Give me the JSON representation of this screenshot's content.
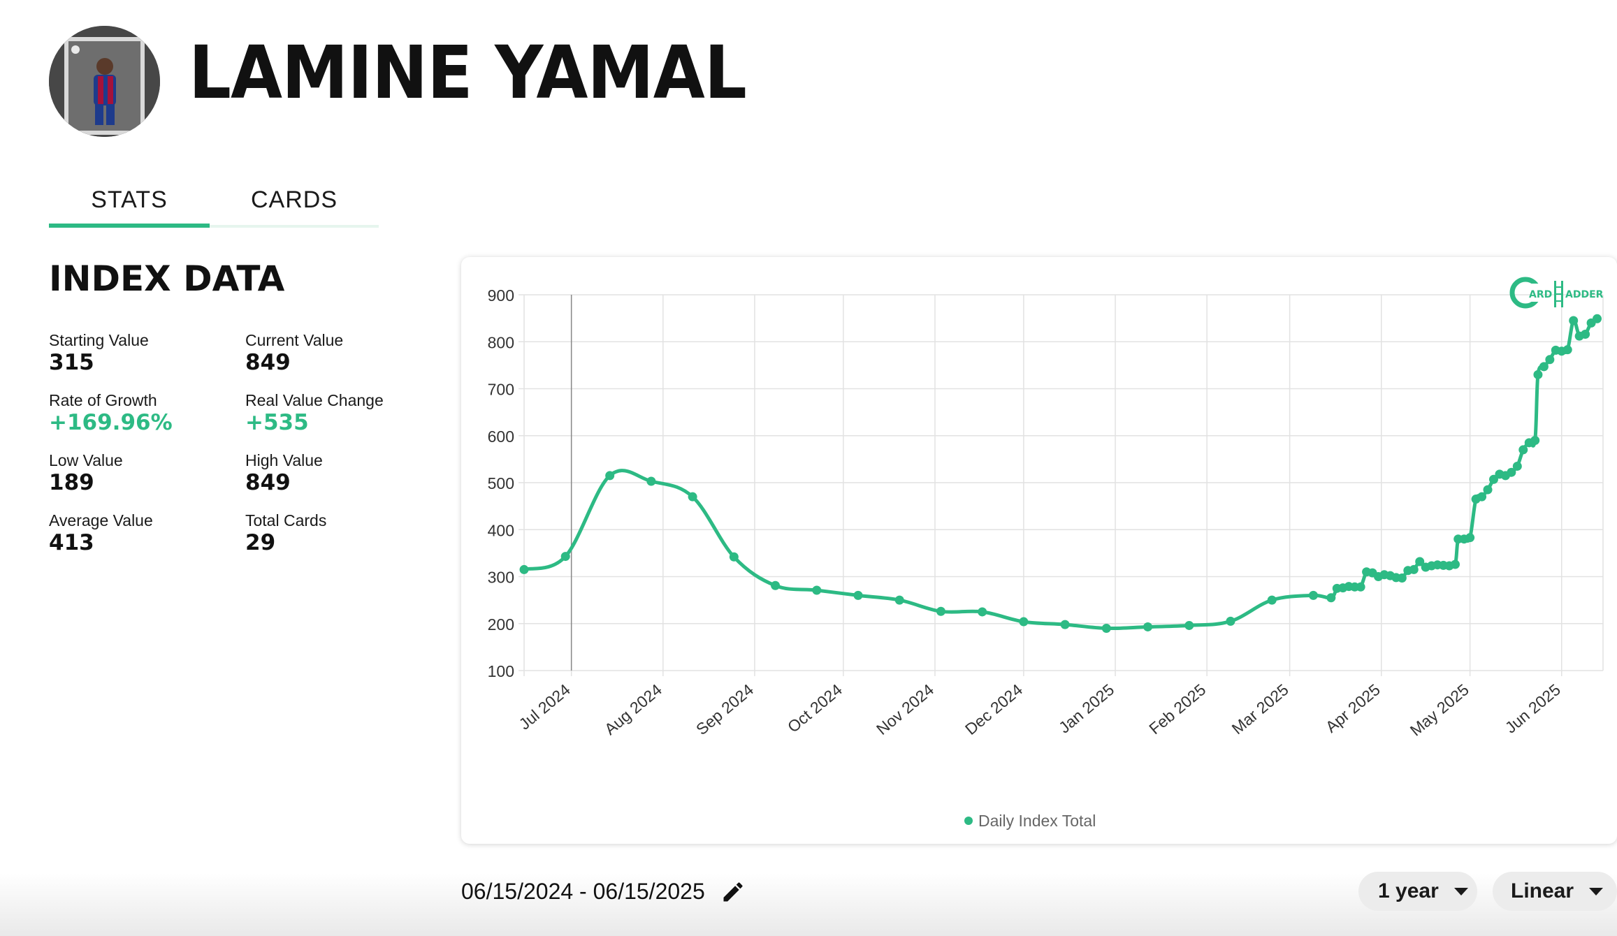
{
  "player": {
    "name": "LAMINE YAMAL"
  },
  "tabs": [
    {
      "label": "STATS",
      "active": true
    },
    {
      "label": "CARDS",
      "active": false
    }
  ],
  "index_data": {
    "title": "INDEX DATA",
    "stats": [
      {
        "label": "Starting Value",
        "value": "315",
        "highlight": false
      },
      {
        "label": "Current Value",
        "value": "849",
        "highlight": false
      },
      {
        "label": "Rate of Growth",
        "value": "+169.96%",
        "highlight": true
      },
      {
        "label": "Real Value Change",
        "value": "+535",
        "highlight": true
      },
      {
        "label": "Low Value",
        "value": "189",
        "highlight": false
      },
      {
        "label": "High Value",
        "value": "849",
        "highlight": false
      },
      {
        "label": "Average Value",
        "value": "413",
        "highlight": false
      },
      {
        "label": "Total Cards",
        "value": "29",
        "highlight": false
      }
    ]
  },
  "chart_data": {
    "type": "line",
    "series_name": "Daily Index Total",
    "color": "#2dba84",
    "ylim": [
      100,
      900
    ],
    "yticks": [
      900,
      800,
      700,
      600,
      500,
      400,
      300,
      200,
      100
    ],
    "xlim": [
      "2024-06-15",
      "2025-06-15"
    ],
    "xticks": [
      {
        "date": "2024-07-01",
        "label": "Jul 2024"
      },
      {
        "date": "2024-08-01",
        "label": "Aug 2024"
      },
      {
        "date": "2024-09-01",
        "label": "Sep 2024"
      },
      {
        "date": "2024-10-01",
        "label": "Oct 2024"
      },
      {
        "date": "2024-11-01",
        "label": "Nov 2024"
      },
      {
        "date": "2024-12-01",
        "label": "Dec 2024"
      },
      {
        "date": "2025-01-01",
        "label": "Jan 2025"
      },
      {
        "date": "2025-02-01",
        "label": "Feb 2025"
      },
      {
        "date": "2025-03-01",
        "label": "Mar 2025"
      },
      {
        "date": "2025-04-01",
        "label": "Apr 2025"
      },
      {
        "date": "2025-05-01",
        "label": "May 2025"
      },
      {
        "date": "2025-06-01",
        "label": "Jun 2025"
      }
    ],
    "legend": "bottom",
    "grid": true,
    "points": [
      [
        "2024-06-15",
        315
      ],
      [
        "2024-06-29",
        343
      ],
      [
        "2024-07-14",
        515
      ],
      [
        "2024-07-28",
        503
      ],
      [
        "2024-08-11",
        470
      ],
      [
        "2024-08-25",
        342
      ],
      [
        "2024-09-08",
        281
      ],
      [
        "2024-09-22",
        271
      ],
      [
        "2024-10-06",
        260
      ],
      [
        "2024-10-20",
        250
      ],
      [
        "2024-11-03",
        226
      ],
      [
        "2024-11-17",
        225
      ],
      [
        "2024-12-01",
        204
      ],
      [
        "2024-12-15",
        198
      ],
      [
        "2024-12-29",
        190
      ],
      [
        "2025-01-12",
        193
      ],
      [
        "2025-01-26",
        196
      ],
      [
        "2025-02-09",
        205
      ],
      [
        "2025-02-23",
        250
      ],
      [
        "2025-03-09",
        260
      ],
      [
        "2025-03-15",
        255
      ],
      [
        "2025-03-17",
        275
      ],
      [
        "2025-03-19",
        276
      ],
      [
        "2025-03-21",
        279
      ],
      [
        "2025-03-23",
        278
      ],
      [
        "2025-03-25",
        278
      ],
      [
        "2025-03-27",
        310
      ],
      [
        "2025-03-29",
        308
      ],
      [
        "2025-03-31",
        300
      ],
      [
        "2025-04-02",
        304
      ],
      [
        "2025-04-04",
        302
      ],
      [
        "2025-04-06",
        298
      ],
      [
        "2025-04-08",
        297
      ],
      [
        "2025-04-10",
        313
      ],
      [
        "2025-04-12",
        315
      ],
      [
        "2025-04-14",
        332
      ],
      [
        "2025-04-16",
        320
      ],
      [
        "2025-04-18",
        323
      ],
      [
        "2025-04-20",
        325
      ],
      [
        "2025-04-22",
        324
      ],
      [
        "2025-04-24",
        323
      ],
      [
        "2025-04-26",
        326
      ],
      [
        "2025-04-27",
        380
      ],
      [
        "2025-04-29",
        380
      ],
      [
        "2025-05-01",
        383
      ],
      [
        "2025-05-03",
        465
      ],
      [
        "2025-05-05",
        470
      ],
      [
        "2025-05-07",
        485
      ],
      [
        "2025-05-09",
        507
      ],
      [
        "2025-05-11",
        518
      ],
      [
        "2025-05-13",
        515
      ],
      [
        "2025-05-15",
        522
      ],
      [
        "2025-05-17",
        535
      ],
      [
        "2025-05-19",
        570
      ],
      [
        "2025-05-21",
        585
      ],
      [
        "2025-05-23",
        590
      ],
      [
        "2025-05-24",
        730
      ],
      [
        "2025-05-26",
        747
      ],
      [
        "2025-05-28",
        762
      ],
      [
        "2025-05-30",
        782
      ],
      [
        "2025-06-01",
        780
      ],
      [
        "2025-06-03",
        783
      ],
      [
        "2025-06-05",
        845
      ],
      [
        "2025-06-07",
        812
      ],
      [
        "2025-06-09",
        816
      ],
      [
        "2025-06-11",
        840
      ],
      [
        "2025-06-13",
        849
      ]
    ]
  },
  "controls": {
    "date_range": "06/15/2024 - 06/15/2025",
    "range_select": "1 year",
    "scale_select": "Linear"
  }
}
